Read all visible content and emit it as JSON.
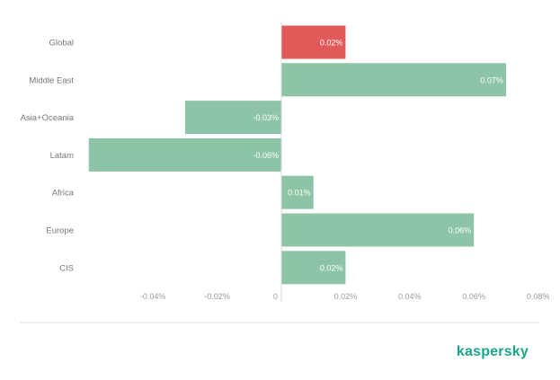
{
  "chart_data": {
    "type": "bar",
    "orientation": "horizontal",
    "categories": [
      "Global",
      "Middle East",
      "Asia+Oceania",
      "Latam",
      "Africa",
      "Europe",
      "CIS"
    ],
    "values": [
      0.02,
      0.07,
      -0.03,
      -0.06,
      0.01,
      0.06,
      0.02
    ],
    "data_labels": [
      "0.02%",
      "0.07%",
      "-0.03%",
      "-0.06%",
      "0.01%",
      "0.06%",
      "0.02%"
    ],
    "highlight_category": "Global",
    "xlim": [
      -0.06,
      0.08
    ],
    "x_ticks": [
      -0.04,
      -0.02,
      0,
      0.02,
      0.04,
      0.06,
      0.08
    ],
    "x_tick_labels": [
      "-0.04%",
      "-0.02%",
      "0",
      "0.02%",
      "0.04%",
      "0.06%",
      "0.08%"
    ],
    "grid": false,
    "legend": "none",
    "colors": {
      "bar": "#8dc4a7",
      "highlight": "#e05a5a",
      "zero_line": "#d8d8d8",
      "category_text": "#777777",
      "tick_text": "#9a9a9a",
      "data_label_text": "#ffffff"
    }
  },
  "brand": {
    "logo_text": "kaspersky",
    "color": "#1ba589"
  }
}
